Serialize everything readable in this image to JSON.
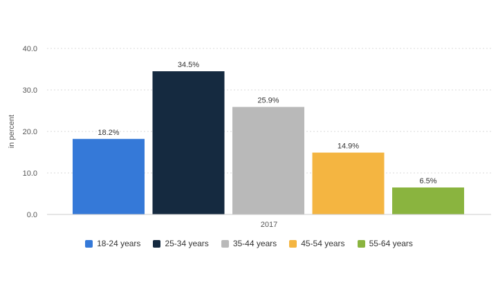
{
  "chart_data": {
    "type": "bar",
    "categories": [
      "2017"
    ],
    "series": [
      {
        "name": "18-24 years",
        "values": [
          18.2
        ],
        "label": "18.2%",
        "color": "#3579d8"
      },
      {
        "name": "25-34 years",
        "values": [
          34.5
        ],
        "label": "34.5%",
        "color": "#152a40"
      },
      {
        "name": "35-44 years",
        "values": [
          25.9
        ],
        "label": "25.9%",
        "color": "#b9b9b9"
      },
      {
        "name": "45-54 years",
        "values": [
          14.9
        ],
        "label": "14.9%",
        "color": "#f4b541"
      },
      {
        "name": "55-64 years",
        "values": [
          6.5
        ],
        "label": "6.5%",
        "color": "#8ab43f"
      }
    ],
    "xlabel": "",
    "ylabel": "in percent",
    "ylim": [
      0,
      40
    ],
    "yticks": [
      "0.0",
      "10.0",
      "20.0",
      "30.0",
      "40.0"
    ],
    "grid": true,
    "legend": "bottom"
  }
}
